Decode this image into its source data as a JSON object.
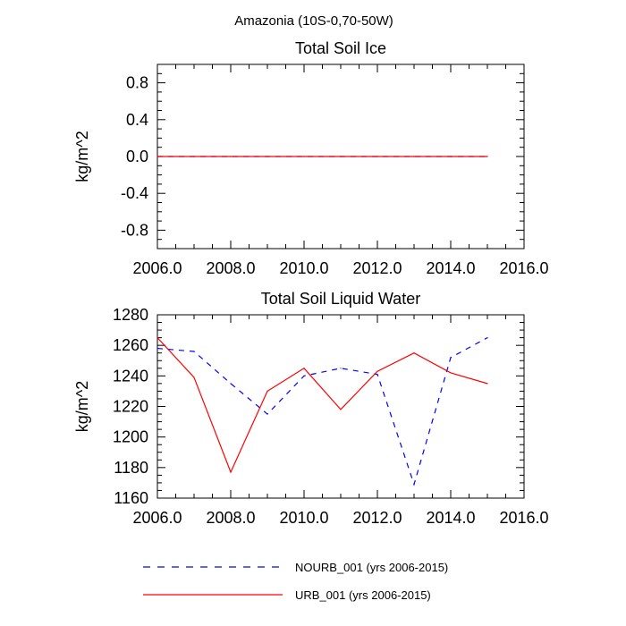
{
  "figure": {
    "title": "Amazonia (10S-0,70-50W)"
  },
  "chart_data": [
    {
      "type": "line",
      "title": "Total Soil Ice",
      "ylabel": "kg/m^2",
      "xlim": [
        2006,
        2016
      ],
      "ylim": [
        -1.0,
        1.0
      ],
      "xticks": [
        2006,
        2008,
        2010,
        2012,
        2014,
        2016
      ],
      "xtick_labels": [
        "2006.0",
        "2008.0",
        "2010.0",
        "2012.0",
        "2014.0",
        "2016.0"
      ],
      "yticks": [
        -0.8,
        -0.4,
        0.0,
        0.4,
        0.8
      ],
      "ytick_labels": [
        "-0.8",
        "-0.4",
        "0.0",
        "0.4",
        "0.8"
      ],
      "x": [
        2006,
        2007,
        2008,
        2009,
        2010,
        2011,
        2012,
        2013,
        2014,
        2015
      ],
      "series": [
        {
          "name": "NOURB_001 (yrs 2006-2015)",
          "color": "#0000ff",
          "dash": "dashed",
          "values": [
            0,
            0,
            0,
            0,
            0,
            0,
            0,
            0,
            0,
            0
          ]
        },
        {
          "name": "URB_001 (yrs 2006-2015)",
          "color": "#ff0000",
          "dash": "solid",
          "values": [
            0,
            0,
            0,
            0,
            0,
            0,
            0,
            0,
            0,
            0
          ]
        }
      ],
      "grid": false
    },
    {
      "type": "line",
      "title": "Total Soil Liquid Water",
      "ylabel": "kg/m^2",
      "xlim": [
        2006,
        2016
      ],
      "ylim": [
        1160,
        1280
      ],
      "xticks": [
        2006,
        2008,
        2010,
        2012,
        2014,
        2016
      ],
      "xtick_labels": [
        "2006.0",
        "2008.0",
        "2010.0",
        "2012.0",
        "2014.0",
        "2016.0"
      ],
      "yticks": [
        1160,
        1180,
        1200,
        1220,
        1240,
        1260,
        1280
      ],
      "ytick_labels": [
        "1160",
        "1180",
        "1200",
        "1220",
        "1240",
        "1260",
        "1280"
      ],
      "x": [
        2006,
        2007,
        2008,
        2009,
        2010,
        2011,
        2012,
        2013,
        2014,
        2015
      ],
      "series": [
        {
          "name": "NOURB_001 (yrs 2006-2015)",
          "color": "#0000ff",
          "dash": "dashed",
          "values": [
            1258,
            1256,
            1235,
            1215,
            1240,
            1245,
            1241,
            1169,
            1252,
            1265
          ]
        },
        {
          "name": "URB_001 (yrs 2006-2015)",
          "color": "#ff0000",
          "dash": "solid",
          "values": [
            1265,
            1239,
            1177,
            1230,
            1245,
            1218,
            1243,
            1255,
            1242,
            1235
          ]
        }
      ],
      "grid": false
    }
  ],
  "legend": {
    "placement": "bottom",
    "items": [
      {
        "label": "NOURB_001 (yrs 2006-2015)",
        "color": "#0000ff",
        "dash": "dashed"
      },
      {
        "label": "URB_001 (yrs 2006-2015)",
        "color": "#ff0000",
        "dash": "solid"
      }
    ]
  }
}
